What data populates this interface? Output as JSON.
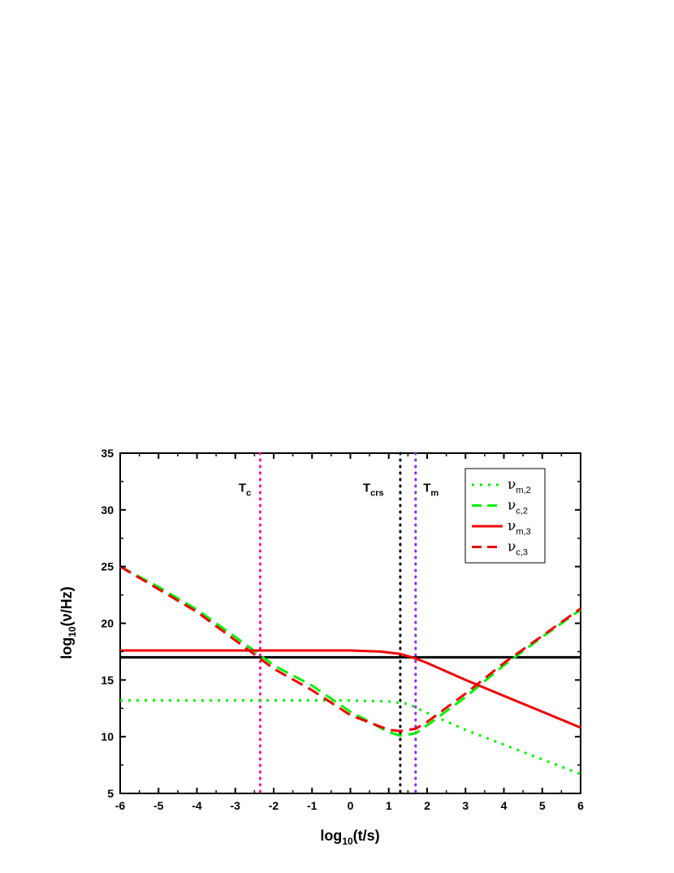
{
  "chart_data": {
    "type": "line",
    "xlabel": "log10(t/s)",
    "xlabel_main": "log",
    "xlabel_sub": "10",
    "xlabel_rest": "(t/s)",
    "ylabel": "log10(ν/Hz)",
    "ylabel_main": "log",
    "ylabel_sub": "10",
    "ylabel_rest": "(ν/Hz)",
    "xlim": [
      -6,
      6
    ],
    "ylim": [
      5,
      35
    ],
    "xticks": [
      "-6",
      "-5",
      "-4",
      "-3",
      "-2",
      "-1",
      "0",
      "1",
      "2",
      "3",
      "4",
      "5",
      "6"
    ],
    "yticks": [
      "5",
      "10",
      "15",
      "20",
      "25",
      "30",
      "35"
    ],
    "grid": false,
    "legend_position": "top-right",
    "series": [
      {
        "name": "ν_m,2",
        "name_main": "ν",
        "name_sub": "m,2",
        "style": "dotted",
        "color": "#00ee00",
        "x": [
          -6,
          -4,
          -2,
          0,
          1,
          1.5,
          2,
          3,
          4,
          5,
          6
        ],
        "y": [
          13.2,
          13.2,
          13.2,
          13.2,
          13.1,
          12.9,
          12.1,
          10.6,
          9.3,
          8.0,
          6.7
        ]
      },
      {
        "name": "ν_c,2",
        "name_main": "ν",
        "name_sub": "c,2",
        "style": "dashed",
        "color": "#00ee00",
        "x": [
          -6,
          -5,
          -4,
          -3,
          -2.4,
          -2,
          -1,
          0,
          1,
          1.3,
          1.7,
          2,
          3,
          4,
          5,
          6
        ],
        "y": [
          25.0,
          23.2,
          21.2,
          18.8,
          17.3,
          16.3,
          14.5,
          12.2,
          10.4,
          10.1,
          10.3,
          11.0,
          13.5,
          16.3,
          18.8,
          21.2
        ]
      },
      {
        "name": "ν_m,3",
        "name_main": "ν",
        "name_sub": "m,3",
        "style": "solid",
        "color": "#ee0000",
        "x": [
          -6,
          -4,
          -2,
          0,
          0.8,
          1.3,
          1.7,
          2,
          3,
          4,
          5,
          6
        ],
        "y": [
          17.6,
          17.6,
          17.6,
          17.6,
          17.5,
          17.3,
          16.9,
          16.5,
          15.0,
          13.6,
          12.2,
          10.8
        ]
      },
      {
        "name": "ν_c,3",
        "name_main": "ν",
        "name_sub": "c,3",
        "style": "dashed",
        "color": "#ee0000",
        "x": [
          -6,
          -5,
          -4,
          -3,
          -2.4,
          -2,
          -1,
          0,
          1,
          1.3,
          1.7,
          2,
          3,
          4,
          5,
          6
        ],
        "y": [
          25.0,
          23.0,
          21.0,
          18.5,
          17.0,
          16.0,
          14.1,
          11.9,
          10.6,
          10.5,
          10.7,
          11.3,
          13.8,
          16.5,
          18.9,
          21.3
        ]
      }
    ],
    "reference_lines": [
      {
        "orientation": "horizontal",
        "y": 17,
        "color": "#000000",
        "style": "solid"
      },
      {
        "orientation": "vertical",
        "x": -2.35,
        "color": "#ff1493",
        "style": "dotted",
        "label_main": "T",
        "label_sub": "c",
        "label_x": -2.75
      },
      {
        "orientation": "vertical",
        "x": 1.3,
        "color": "#000000",
        "style": "dotted",
        "label_main": "T",
        "label_sub": "crs",
        "label_x": 0.6
      },
      {
        "orientation": "vertical",
        "x": 1.7,
        "color": "#8a2be2",
        "style": "dotted",
        "label_main": "T",
        "label_sub": "m",
        "label_x": 2.1
      }
    ],
    "annotation_y": 31.6
  }
}
